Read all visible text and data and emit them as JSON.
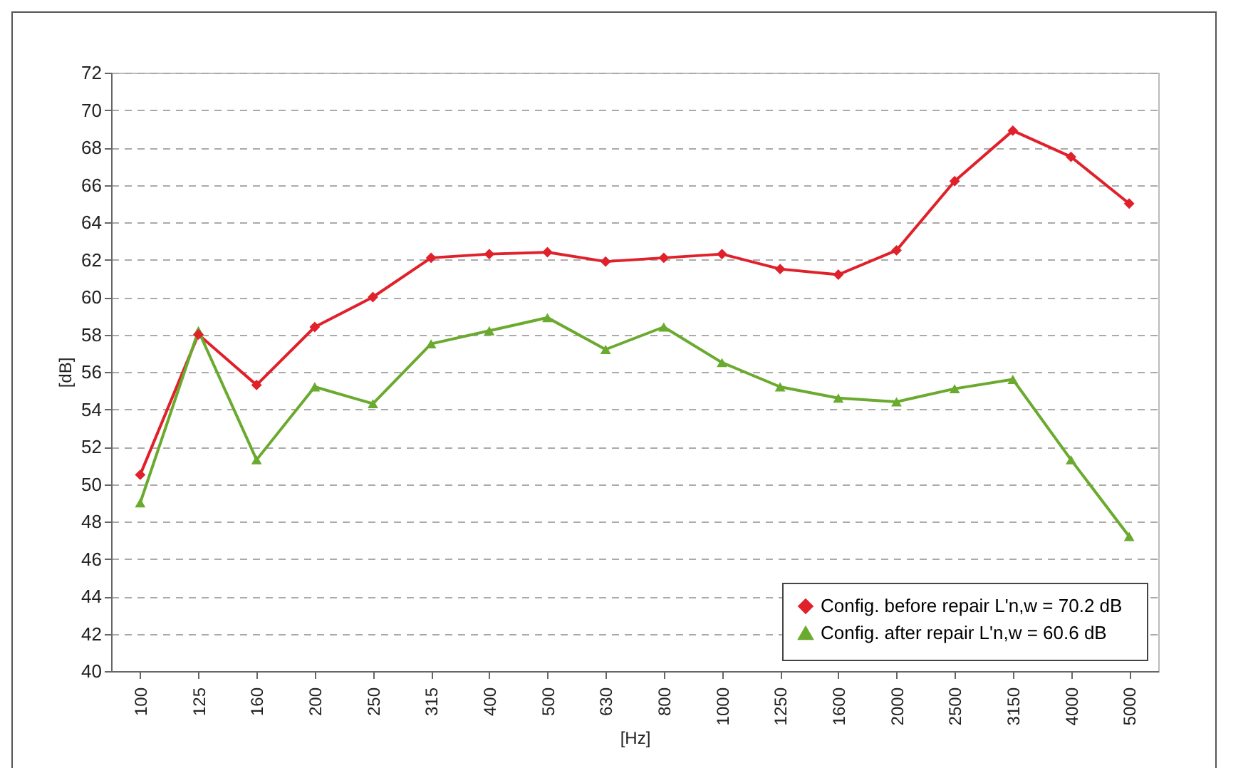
{
  "chart_data": {
    "type": "line",
    "xlabel": "[Hz]",
    "ylabel": "[dB]",
    "categories": [
      "100",
      "125",
      "160",
      "200",
      "250",
      "315",
      "400",
      "500",
      "630",
      "800",
      "1000",
      "1250",
      "1600",
      "2000",
      "2500",
      "3150",
      "4000",
      "5000"
    ],
    "series": [
      {
        "name": "Config. before repair   L'n,w = 70.2 dB",
        "color": "#e0202a",
        "marker": "diamond",
        "values": [
          50.5,
          58.0,
          55.3,
          58.4,
          60.0,
          62.1,
          62.3,
          62.4,
          61.9,
          62.1,
          62.3,
          61.5,
          61.2,
          62.5,
          66.2,
          68.9,
          67.5,
          65.0
        ]
      },
      {
        "name": "Config. after repair  L'n,w = 60.6 dB",
        "color": "#6aaa2e",
        "marker": "triangle",
        "values": [
          49.0,
          58.2,
          51.3,
          55.2,
          54.3,
          57.5,
          58.2,
          58.9,
          57.2,
          58.4,
          56.5,
          55.2,
          54.6,
          54.4,
          55.1,
          55.6,
          51.3,
          47.2
        ]
      }
    ],
    "ylim": [
      40,
      72
    ],
    "yticks": [
      40,
      42,
      44,
      46,
      48,
      50,
      52,
      54,
      56,
      58,
      60,
      62,
      64,
      66,
      68,
      70,
      72
    ],
    "grid": "y",
    "legend": "bottom right",
    "line_style": "solid"
  }
}
